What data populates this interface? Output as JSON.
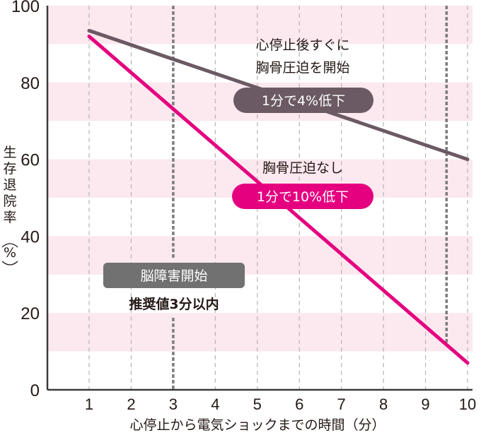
{
  "chart_data": {
    "type": "line",
    "title": "",
    "xlabel": "心停止から電気ショックまでの時間（分）",
    "ylabel": "生存退院率（%）",
    "xlim": [
      0,
      10
    ],
    "ylim": [
      0,
      100
    ],
    "x_ticks": [
      "1",
      "2",
      "3",
      "4",
      "5",
      "6",
      "7",
      "8",
      "9",
      "10"
    ],
    "y_ticks": [
      "0",
      "20",
      "40",
      "60",
      "80",
      "100"
    ],
    "grid": {
      "vertical_dashed": true,
      "horizontal_bands": true
    },
    "series": [
      {
        "name": "心停止後すぐに胸骨圧迫を開始",
        "rate_label": "1分で4%低下",
        "color": "#6b5a63",
        "x": [
          1,
          10
        ],
        "values": [
          93.5,
          60
        ]
      },
      {
        "name": "胸骨圧迫なし",
        "rate_label": "1分で10%低下",
        "color": "#e4007f",
        "x": [
          1,
          10
        ],
        "values": [
          92,
          7
        ]
      }
    ],
    "annotations": [
      {
        "text": "心停止後すぐに",
        "x": 6.0,
        "y": 89
      },
      {
        "text": "胸骨圧迫を開始",
        "x": 6.0,
        "y": 83
      },
      {
        "text": "1分で4%低下",
        "x": 6.0,
        "y": 75,
        "style": "pill",
        "color": "#6b5a63"
      },
      {
        "text": "胸骨圧迫なし",
        "x": 6.0,
        "y": 57
      },
      {
        "text": "1分で10%低下",
        "x": 6.0,
        "y": 50,
        "style": "pill",
        "color": "#e4007f"
      },
      {
        "text": "脳障害開始",
        "x": 3.0,
        "y": 30,
        "style": "box",
        "color": "#727171"
      },
      {
        "text": "推奨値3分以内",
        "x": 3.0,
        "y": 23
      }
    ],
    "reference_lines": [
      {
        "x": 3,
        "style": "thick-dotted",
        "label": "推奨値3分以内"
      },
      {
        "x": 9.5,
        "style": "thick-dotted"
      }
    ],
    "band_color": "#fce8ef"
  },
  "labels": {
    "top_line1": "心停止後すぐに",
    "top_line2": "胸骨圧迫を開始",
    "dark_pill": "1分で4%低下",
    "mid_label": "胸骨圧迫なし",
    "pink_pill": "1分で10%低下",
    "brain_box": "脳障害開始",
    "recommend": "推奨値3分以内",
    "y_title_chars": [
      "生",
      "存",
      "退",
      "院",
      "率"
    ],
    "y_title_unit": "%",
    "x_title": "心停止から電気ショックまでの時間（分）"
  }
}
